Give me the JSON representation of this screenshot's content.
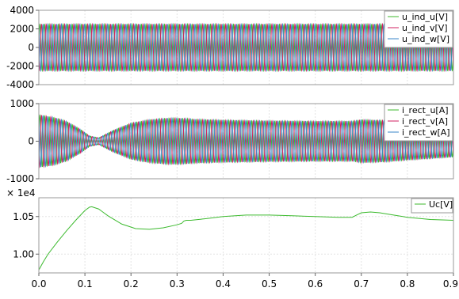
{
  "chart_data": [
    {
      "type": "line",
      "title": "",
      "xlabel": "",
      "ylabel": "",
      "xlim": [
        0,
        0.9
      ],
      "ylim": [
        -4000,
        4000
      ],
      "yticks": [
        "4000",
        "2000",
        "0",
        "-2000",
        "-4000"
      ],
      "grid": true,
      "legend_position": "top-right",
      "signal": {
        "amplitude": 2500,
        "frequency_hz": 100
      },
      "series": [
        {
          "name": "u_ind_u[V]",
          "color": "#3cba2e",
          "phase_deg": 0
        },
        {
          "name": "u_ind_v[V]",
          "color": "#d02060",
          "phase_deg": -120
        },
        {
          "name": "u_ind_w[V]",
          "color": "#3a86c8",
          "phase_deg": 120
        }
      ]
    },
    {
      "type": "line",
      "title": "",
      "xlabel": "",
      "ylabel": "",
      "xlim": [
        0,
        0.9
      ],
      "ylim": [
        -1000,
        1000
      ],
      "yticks": [
        "1000",
        "0",
        "-1000"
      ],
      "grid": true,
      "legend_position": "top-right",
      "signal": {
        "frequency_hz": 100
      },
      "envelope": {
        "x": [
          0,
          0.03,
          0.06,
          0.09,
          0.11,
          0.13,
          0.16,
          0.2,
          0.24,
          0.28,
          0.3,
          0.32,
          0.34,
          0.4,
          0.5,
          0.6,
          0.68,
          0.7,
          0.75,
          0.8,
          0.9
        ],
        "y": [
          700,
          640,
          530,
          320,
          140,
          90,
          280,
          480,
          570,
          610,
          610,
          600,
          580,
          560,
          540,
          530,
          530,
          570,
          550,
          500,
          420
        ]
      },
      "series": [
        {
          "name": "i_rect_u[A]",
          "color": "#3cba2e",
          "phase_deg": 0
        },
        {
          "name": "i_rect_v[A]",
          "color": "#d02060",
          "phase_deg": -120
        },
        {
          "name": "i_rect_w[A]",
          "color": "#3a86c8",
          "phase_deg": 120
        }
      ]
    },
    {
      "type": "line",
      "title": "",
      "xlabel": "",
      "ylabel": "",
      "scale_label": "× 1e4",
      "xlim": [
        0,
        0.9
      ],
      "ylim": [
        0.975,
        1.075
      ],
      "yticks": [
        "1.05",
        "1.00"
      ],
      "xticks": [
        "0.0",
        "0.1",
        "0.2",
        "0.3",
        "0.4",
        "0.5",
        "0.6",
        "0.7",
        "0.8",
        "0.9"
      ],
      "grid": true,
      "legend_position": "top-right",
      "series": [
        {
          "name": "Uc[V]",
          "color": "#3cba2e",
          "x": [
            0,
            0.01,
            0.02,
            0.04,
            0.06,
            0.08,
            0.1,
            0.11,
            0.115,
            0.13,
            0.15,
            0.18,
            0.21,
            0.24,
            0.27,
            0.3,
            0.31,
            0.315,
            0.32,
            0.33,
            0.36,
            0.4,
            0.45,
            0.5,
            0.55,
            0.6,
            0.65,
            0.68,
            0.69,
            0.7,
            0.72,
            0.74,
            0.77,
            0.8,
            0.85,
            0.9
          ],
          "y": [
            0.979,
            0.99,
            1.0,
            1.016,
            1.031,
            1.045,
            1.058,
            1.0625,
            1.063,
            1.06,
            1.051,
            1.04,
            1.034,
            1.033,
            1.035,
            1.039,
            1.041,
            1.044,
            1.045,
            1.045,
            1.047,
            1.05,
            1.052,
            1.052,
            1.051,
            1.05,
            1.049,
            1.049,
            1.052,
            1.055,
            1.056,
            1.055,
            1.052,
            1.049,
            1.046,
            1.045
          ]
        }
      ]
    }
  ]
}
